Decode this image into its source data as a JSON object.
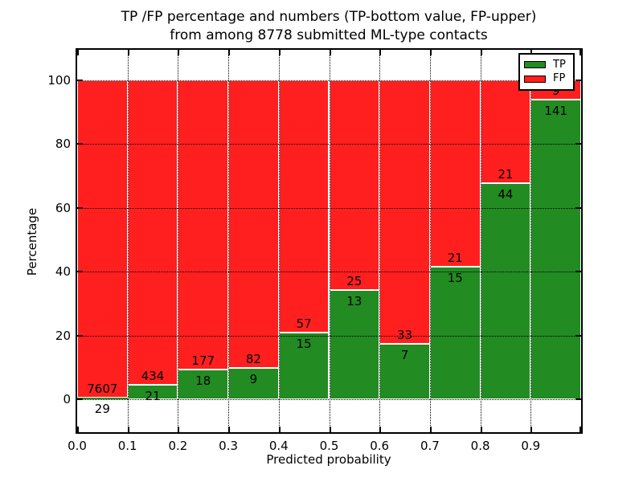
{
  "title": {
    "line1": "TP /FP percentage and numbers (TP-bottom value, FP-upper)",
    "line2": "from among 8778 submitted ML-type contacts"
  },
  "axes": {
    "x_label": "Predicted probability",
    "y_label": "Percentage",
    "x_ticks": [
      "0.0",
      "0.1",
      "0.2",
      "0.3",
      "0.4",
      "0.5",
      "0.6",
      "0.7",
      "0.8",
      "0.9"
    ],
    "y_ticks": [
      0,
      20,
      40,
      60,
      80,
      100
    ]
  },
  "legend": {
    "items": [
      {
        "label": "TP",
        "color": "#228b22"
      },
      {
        "label": "FP",
        "color": "#ff1f1f"
      }
    ]
  },
  "chart_data": {
    "type": "bar",
    "subtype": "stacked-percentage",
    "title": "TP /FP percentage and numbers (TP-bottom value, FP-upper) from among 8778 submitted ML-type contacts",
    "xlabel": "Predicted probability",
    "ylabel": "Percentage",
    "categories": [
      "0.0-0.1",
      "0.1-0.2",
      "0.2-0.3",
      "0.3-0.4",
      "0.4-0.5",
      "0.5-0.6",
      "0.6-0.7",
      "0.7-0.8",
      "0.8-0.9",
      "0.9-1.0"
    ],
    "bin_width": 0.1,
    "series": [
      {
        "name": "TP",
        "position": "bottom",
        "color": "#228b22",
        "counts": [
          29,
          21,
          18,
          9,
          15,
          13,
          7,
          15,
          44,
          141
        ]
      },
      {
        "name": "FP",
        "position": "top",
        "color": "#ff1f1f",
        "counts": [
          7607,
          434,
          177,
          82,
          57,
          25,
          33,
          21,
          21,
          9
        ]
      }
    ],
    "tp_percent": [
      0.38,
      4.62,
      9.23,
      9.89,
      20.83,
      34.21,
      17.5,
      41.67,
      67.69,
      94.0
    ],
    "total_contacts": 8778,
    "xlim": [
      0,
      1
    ],
    "ylim": [
      -11,
      110
    ],
    "grid": true,
    "grid_style": "dotted",
    "legend_position": "upper right"
  }
}
